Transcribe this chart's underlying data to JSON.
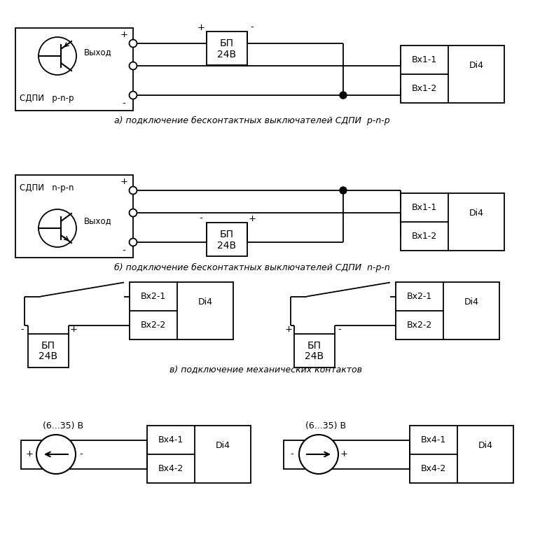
{
  "bg": "#ffffff",
  "lc": "#000000",
  "caption_a": "а) подключение бесконтактных выключателей СДПИ  p-n-p",
  "caption_b": "б) подключение бесконтактных выключателей СДПИ  n-p-n",
  "caption_c": "в) подключение механических контактов",
  "label_bp": "БП",
  "label_24v": "24В",
  "label_di4": "Di4",
  "label_vx11": "Вх1-1",
  "label_vx12": "Вх1-2",
  "label_vx21": "Вх2-1",
  "label_vx22": "Вх2-2",
  "label_vx41": "Вх4-1",
  "label_vx42": "Вх4-2",
  "label_sdpi_pnp": "СДПИ   p-n-p",
  "label_sdpi_npn": "СДПИ   n-p-n",
  "label_vyhod": "Выход",
  "label_635": "(6...35) В"
}
